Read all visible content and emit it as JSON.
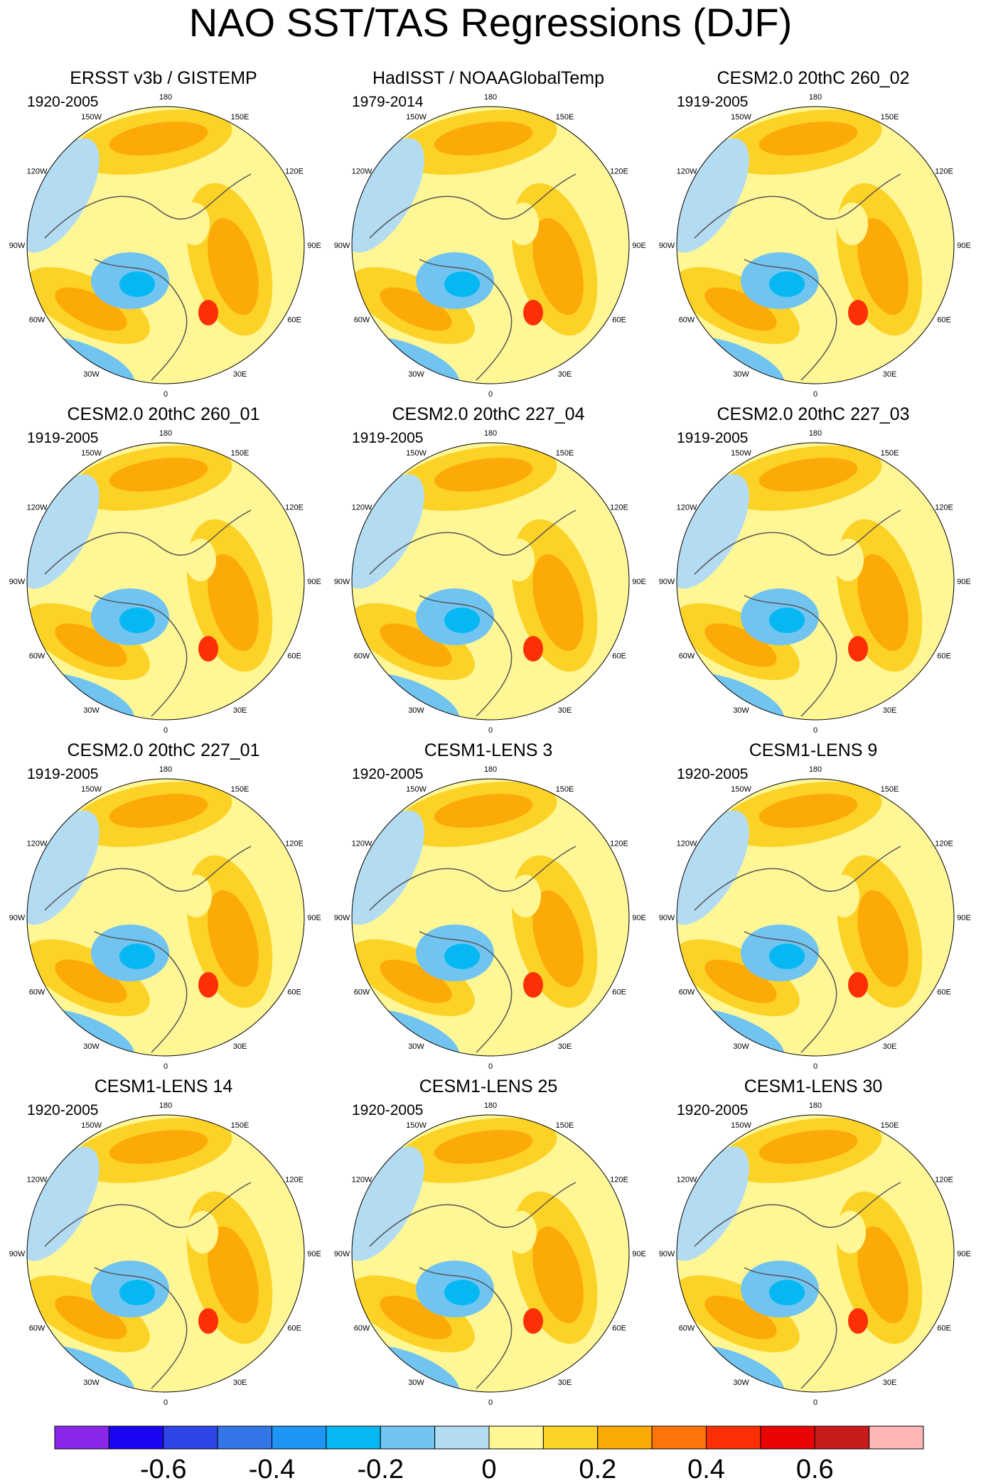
{
  "chart_data": {
    "type": "polar-map-panels",
    "title": "NAO SST/TAS Regressions (DJF)",
    "projection": "North polar stereographic",
    "longitude_labels": [
      "180",
      "150E",
      "120E",
      "90E",
      "60E",
      "30E",
      "0",
      "30W",
      "60W",
      "90W",
      "120W",
      "150W"
    ],
    "panels": [
      {
        "title": "ERSST v3b / GISTEMP",
        "period": "1920-2005"
      },
      {
        "title": "HadISST / NOAAGlobalTemp",
        "period": "1979-2014"
      },
      {
        "title": "CESM2.0 20thC 260_02",
        "period": "1919-2005"
      },
      {
        "title": "CESM2.0 20thC 260_01",
        "period": "1919-2005"
      },
      {
        "title": "CESM2.0 20thC 227_04",
        "period": "1919-2005"
      },
      {
        "title": "CESM2.0 20thC 227_03",
        "period": "1919-2005"
      },
      {
        "title": "CESM2.0 20thC 227_01",
        "period": "1919-2005"
      },
      {
        "title": "CESM1-LENS 3",
        "period": "1920-2005"
      },
      {
        "title": "CESM1-LENS 9",
        "period": "1920-2005"
      },
      {
        "title": "CESM1-LENS 14",
        "period": "1920-2005"
      },
      {
        "title": "CESM1-LENS 25",
        "period": "1920-2005"
      },
      {
        "title": "CESM1-LENS 30",
        "period": "1920-2005"
      }
    ],
    "colorbar": {
      "colors": [
        "#8a26e8",
        "#1a06f2",
        "#2e46e8",
        "#3576e6",
        "#1f96f5",
        "#06b8f2",
        "#72c4f0",
        "#b3dcf2",
        "#fff796",
        "#fdd226",
        "#fcaa08",
        "#fc7508",
        "#fc3004",
        "#e90505",
        "#c81b1b",
        "#fdb5b5"
      ],
      "tick_values": [
        -0.6,
        -0.4,
        -0.2,
        0,
        0.2,
        0.4,
        0.6
      ],
      "tick_labels": [
        "-0.6",
        "-0.4",
        "-0.2",
        "0",
        "0.2",
        "0.4",
        "0.6"
      ],
      "range": [
        -0.8,
        0.8
      ]
    }
  }
}
